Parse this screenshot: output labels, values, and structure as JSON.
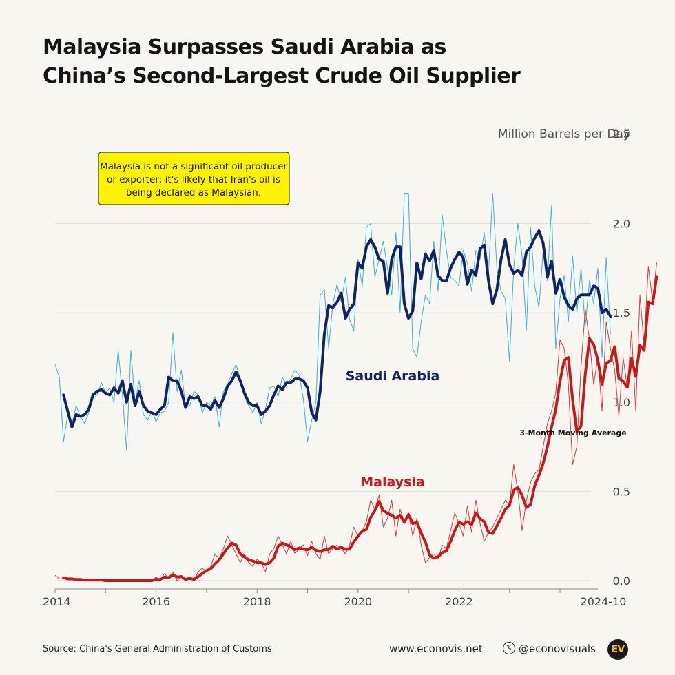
{
  "title": {
    "line1": "Malaysia Surpasses Saudi Arabia as",
    "line2": "China’s Second-Largest Crude Oil Supplier"
  },
  "annotation": {
    "line1": "Malaysia is not a significant oil producer",
    "line2": "or exporter; it's likely that Iran's oil is",
    "line3": "being declared as Malaysian.",
    "background": "#fff200"
  },
  "footer": {
    "source": "Source: China's General Administration of Customs",
    "site": "www.econovis.net",
    "x_icon": "x-logo-icon",
    "handle": "@econovisuals",
    "logo": "EV"
  },
  "chart_data": {
    "type": "line",
    "ylabel": "Million Barrels per Day",
    "ylim": [
      0,
      2.5
    ],
    "yticks": [
      "0.0",
      "0.5",
      "1.0",
      "1.5",
      "2.0",
      "2.5"
    ],
    "xticks": [
      "2014",
      "2016",
      "2018",
      "2020",
      "2022",
      "2024-10"
    ],
    "moving_average_label": "3-Month Moving Average",
    "grid": true,
    "series": [
      {
        "name": "Saudi Arabia",
        "color": "#0f2460",
        "raw_color": "#3aaee0",
        "start": "2014-01",
        "monthly": [
          1.21,
          1.14,
          0.78,
          0.93,
          0.87,
          0.98,
          0.92,
          0.88,
          0.94,
          1.02,
          1.04,
          1.11,
          1.05,
          1.08,
          1.0,
          1.29,
          1.04,
          0.73,
          1.29,
          1.0,
          1.12,
          0.93,
          0.9,
          0.95,
          0.89,
          0.94,
          0.95,
          1.0,
          1.39,
          1.06,
          1.18,
          0.97,
          0.98,
          1.06,
          1.04,
          0.94,
          1.0,
          0.98,
          1.03,
          0.86,
          1.06,
          1.1,
          1.16,
          1.21,
          1.13,
          1.03,
          0.98,
          0.94,
          1.0,
          0.88,
          0.96,
          1.08,
          1.09,
          1.03,
          1.14,
          1.1,
          1.13,
          1.18,
          1.15,
          1.02,
          0.78,
          0.9,
          1.0,
          1.6,
          1.63,
          1.3,
          1.55,
          1.66,
          1.56,
          1.7,
          1.46,
          1.4,
          1.8,
          1.65,
          1.98,
          2.0,
          1.7,
          1.8,
          1.9,
          1.75,
          1.6,
          1.95,
          1.5,
          2.17,
          2.17,
          1.3,
          1.25,
          1.45,
          1.6,
          1.55,
          1.9,
          1.62,
          2.05,
          1.85,
          1.7,
          1.68,
          1.65,
          1.85,
          1.78,
          1.62,
          1.85,
          1.8,
          1.95,
          1.72,
          2.17,
          1.75,
          1.62,
          1.58,
          1.23,
          1.75,
          2.0,
          1.82,
          1.4,
          1.98,
          1.65,
          1.53,
          1.85,
          1.68,
          2.1,
          1.3,
          1.58,
          1.71,
          1.45,
          1.82,
          1.5,
          1.75,
          1.42,
          1.68,
          1.55,
          1.75,
          1.25,
          1.81,
          1.38
        ],
        "ma_start": "2014-03",
        "ma": [
          1.04,
          0.95,
          0.86,
          0.93,
          0.92,
          0.93,
          0.96,
          1.04,
          1.06,
          1.07,
          1.05,
          1.04,
          1.08,
          1.05,
          1.12,
          1.0,
          1.1,
          0.98,
          1.06,
          0.98,
          0.95,
          0.94,
          0.93,
          0.96,
          0.98,
          1.14,
          1.12,
          1.12,
          1.06,
          0.97,
          1.03,
          1.02,
          1.03,
          0.98,
          0.98,
          0.96,
          1.01,
          0.97,
          1.02,
          1.09,
          1.12,
          1.17,
          1.12,
          1.05,
          1.0,
          0.98,
          0.98,
          0.93,
          0.95,
          0.98,
          1.04,
          1.09,
          1.07,
          1.11,
          1.11,
          1.13,
          1.13,
          1.12,
          1.08,
          0.94,
          0.9,
          1.06,
          1.38,
          1.54,
          1.53,
          1.56,
          1.61,
          1.47,
          1.52,
          1.55,
          1.78,
          1.75,
          1.87,
          1.91,
          1.87,
          1.8,
          1.79,
          1.61,
          1.8,
          1.87,
          1.87,
          1.55,
          1.47,
          1.51,
          1.78,
          1.69,
          1.83,
          1.79,
          1.85,
          1.71,
          1.68,
          1.68,
          1.75,
          1.8,
          1.84,
          1.81,
          1.66,
          1.74,
          1.71,
          1.86,
          1.88,
          1.68,
          1.55,
          1.63,
          1.8,
          1.91,
          1.77,
          1.72,
          1.74,
          1.71,
          1.84,
          1.87,
          1.92,
          1.96,
          1.89,
          1.7,
          1.79,
          1.61,
          1.69,
          1.59,
          1.54,
          1.52,
          1.58,
          1.6,
          1.6,
          1.6,
          1.65,
          1.64,
          1.5,
          1.52,
          1.48
        ]
      },
      {
        "name": "Malaysia",
        "color": "#c41a1a",
        "raw_color": "#d23a3a",
        "start": "2014-01",
        "monthly": [
          0.03,
          0.01,
          0.01,
          0.01,
          0.01,
          0.0,
          0.01,
          0.0,
          0.0,
          0.01,
          0.0,
          0.0,
          0.0,
          0.0,
          0.0,
          0.0,
          0.0,
          0.0,
          0.0,
          0.0,
          0.0,
          0.0,
          0.0,
          0.0,
          0.02,
          0.0,
          0.04,
          0.01,
          0.05,
          0.0,
          0.02,
          0.0,
          0.02,
          0.0,
          0.05,
          0.07,
          0.05,
          0.08,
          0.15,
          0.12,
          0.18,
          0.25,
          0.2,
          0.15,
          0.1,
          0.15,
          0.1,
          0.08,
          0.12,
          0.1,
          0.05,
          0.15,
          0.18,
          0.25,
          0.2,
          0.15,
          0.22,
          0.15,
          0.18,
          0.2,
          0.14,
          0.22,
          0.15,
          0.12,
          0.25,
          0.15,
          0.18,
          0.2,
          0.18,
          0.15,
          0.2,
          0.3,
          0.25,
          0.28,
          0.33,
          0.45,
          0.4,
          0.48,
          0.3,
          0.35,
          0.45,
          0.25,
          0.4,
          0.33,
          0.38,
          0.25,
          0.35,
          0.2,
          0.1,
          0.13,
          0.15,
          0.12,
          0.2,
          0.18,
          0.28,
          0.38,
          0.32,
          0.25,
          0.42,
          0.27,
          0.45,
          0.32,
          0.22,
          0.27,
          0.3,
          0.35,
          0.4,
          0.45,
          0.42,
          0.65,
          0.5,
          0.28,
          0.45,
          0.55,
          0.6,
          0.62,
          0.75,
          0.88,
          0.95,
          1.05,
          1.35,
          1.3,
          1.1,
          0.65,
          0.75,
          1.2,
          1.52,
          1.35,
          1.1,
          1.25,
          0.95,
          1.45,
          1.3,
          1.18,
          0.92,
          1.25,
          1.08,
          1.4,
          0.95,
          1.6,
          1.32,
          1.76,
          1.57,
          1.78
        ]
      }
    ]
  }
}
